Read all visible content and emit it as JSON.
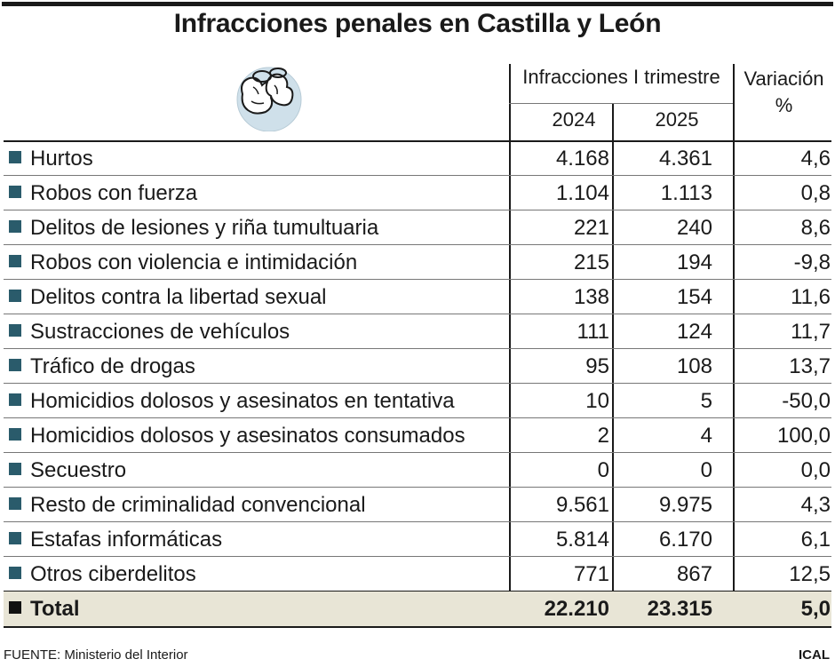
{
  "title": "Infracciones penales en Castilla y León",
  "icon": "handcuffed-fists-icon",
  "colors": {
    "bullet": "#2a5b6b",
    "total_row": "#e8e5d6",
    "icon_circle": "#cfe0ea"
  },
  "header": {
    "group": "Infracciones I trimestre",
    "year_2024": "2024",
    "year_2025": "2025",
    "variation_line1": "Variación",
    "variation_line2": "%"
  },
  "chart_data": {
    "type": "table",
    "title": "Infracciones penales en Castilla y León",
    "columns": [
      "2024",
      "2025",
      "Variación %"
    ],
    "rows": [
      {
        "label": "Hurtos",
        "v2024": "4.168",
        "v2025": "4.361",
        "var": "4,6"
      },
      {
        "label": "Robos con fuerza",
        "v2024": "1.104",
        "v2025": "1.113",
        "var": "0,8"
      },
      {
        "label": "Delitos  de lesiones y riña tumultuaria",
        "v2024": "221",
        "v2025": "240",
        "var": "8,6"
      },
      {
        "label": "Robos con violencia e intimidación",
        "v2024": "215",
        "v2025": "194",
        "var": "-9,8"
      },
      {
        "label": "Delitos contra la libertad sexual",
        "v2024": "138",
        "v2025": "154",
        "var": "11,6"
      },
      {
        "label": "Sustracciones de vehículos",
        "v2024": "111",
        "v2025": "124",
        "var": "11,7"
      },
      {
        "label": "Tráfico de drogas",
        "v2024": "95",
        "v2025": "108",
        "var": "13,7"
      },
      {
        "label": "Homicidios dolosos y asesinatos en tentativa",
        "v2024": "10",
        "v2025": "5",
        "var": "-50,0"
      },
      {
        "label": "Homicidios dolosos y asesinatos consumados",
        "v2024": "2",
        "v2025": "4",
        "var": "100,0"
      },
      {
        "label": "Secuestro",
        "v2024": "0",
        "v2025": "0",
        "var": "0,0"
      },
      {
        "label": "Resto de criminalidad convencional",
        "v2024": "9.561",
        "v2025": "9.975",
        "var": "4,3"
      },
      {
        "label": "Estafas informáticas",
        "v2024": "5.814",
        "v2025": "6.170",
        "var": "6,1"
      },
      {
        "label": "Otros ciberdelitos",
        "v2024": "771",
        "v2025": "867",
        "var": "12,5"
      }
    ],
    "total": {
      "label": "Total",
      "v2024": "22.210",
      "v2025": "23.315",
      "var": "5,0"
    }
  },
  "footer": {
    "source": "FUENTE: Ministerio del Interior",
    "brand": "ICAL"
  }
}
